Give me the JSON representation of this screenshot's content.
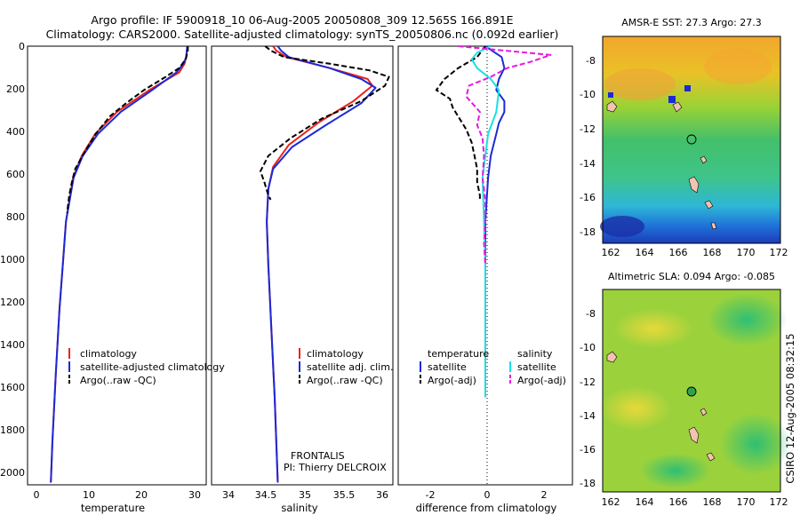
{
  "header": {
    "line1": "Argo profile: IF 5900918_10 06-Aug-2005 20050808_309 12.565S 166.891E",
    "line2": "Climatology: CARS2000. Satellite-adjusted climatology: synTS_20050806.nc (0.092d earlier)"
  },
  "credit": "CSIRO 12-Aug-2005 08:32:15",
  "colors": {
    "red": "#e8241b",
    "blue": "#1b2ad6",
    "black": "#000000",
    "cyan": "#19e0e6",
    "magenta": "#e619e0"
  },
  "y_axis": {
    "range": [
      0,
      2000
    ],
    "inverted": true,
    "ticks": [
      "0",
      "200",
      "400",
      "600",
      "800",
      "1000",
      "1200",
      "1400",
      "1600",
      "1800",
      "2000"
    ]
  },
  "panels": {
    "temperature": {
      "xlabel": "temperature",
      "xlim": [
        -2,
        31
      ],
      "xticks": [
        "0",
        "10",
        "20",
        "30"
      ],
      "legend": [
        "climatology",
        "satellite-adjusted climatology",
        "Argo(..raw -QC)"
      ]
    },
    "salinity": {
      "xlabel": "salinity",
      "xlim": [
        33.8,
        36.1
      ],
      "xticks": [
        "34",
        "34.5",
        "35",
        "35.5",
        "36"
      ],
      "legend": [
        "climatology",
        "satellite adj. clim.",
        "Argo(..raw -QC)"
      ],
      "annotation1": "FRONTALIS",
      "annotation2": "PI: Thierry DELCROIX"
    },
    "difference": {
      "xlabel": "difference from climatology",
      "xlim": [
        -3.2,
        3.2
      ],
      "xticks": [
        "-2",
        "0",
        "2"
      ],
      "legend_head": [
        "temperature",
        "salinity"
      ],
      "legend": [
        "satellite",
        "Argo(-adj)",
        "satellite",
        "Argo(-adj)"
      ]
    }
  },
  "maps": {
    "sst": {
      "title": "AMSR-E SST: 27.3 Argo: 27.3",
      "xticks": [
        "162",
        "164",
        "166",
        "168",
        "170",
        "172"
      ],
      "yticks": [
        "-8",
        "-10",
        "-12",
        "-14",
        "-16",
        "-18"
      ]
    },
    "sla": {
      "title": "Altimetric SLA: 0.094 Argo: -0.085",
      "xticks": [
        "162",
        "164",
        "166",
        "168",
        "170",
        "172"
      ],
      "yticks": [
        "-8",
        "-10",
        "-12",
        "-14",
        "-16",
        "-18"
      ]
    }
  },
  "chart_data": [
    {
      "type": "line",
      "xlabel": "temperature",
      "ylim": [
        2000,
        0
      ],
      "series": [
        {
          "name": "climatology",
          "color": "#e8241b",
          "depth": [
            0,
            50,
            80,
            120,
            200,
            300,
            400,
            500,
            600,
            800,
            1000,
            1200,
            1500,
            1800,
            1990
          ],
          "values": [
            27.5,
            27.3,
            27.0,
            26.0,
            20.5,
            14.5,
            10.5,
            8.0,
            6.4,
            5.1,
            4.5,
            3.9,
            3.2,
            2.6,
            2.3
          ]
        },
        {
          "name": "satellite-adjusted climatology",
          "color": "#1b2ad6",
          "depth": [
            0,
            50,
            80,
            120,
            200,
            300,
            400,
            500,
            600,
            800,
            1000,
            1200,
            1500,
            1800,
            1990
          ],
          "values": [
            27.5,
            27.3,
            26.8,
            25.5,
            21.0,
            15.2,
            11.0,
            8.2,
            6.5,
            5.1,
            4.5,
            3.9,
            3.2,
            2.6,
            2.3
          ]
        },
        {
          "name": "Argo(..raw -QC)",
          "color": "#000000",
          "depth": [
            0,
            20,
            60,
            100,
            140,
            200,
            260,
            320,
            400,
            480,
            560,
            620,
            680,
            760
          ],
          "values": [
            27.6,
            27.6,
            27.2,
            26.0,
            23.5,
            19.5,
            16.2,
            13.2,
            10.6,
            8.6,
            6.8,
            6.2,
            5.7,
            5.3
          ]
        }
      ]
    },
    {
      "type": "line",
      "xlabel": "salinity",
      "ylim": [
        2000,
        0
      ],
      "series": [
        {
          "name": "climatology",
          "color": "#e8241b",
          "depth": [
            0,
            20,
            50,
            100,
            150,
            180,
            250,
            350,
            450,
            550,
            650,
            800,
            1000,
            1300,
            1600,
            1990
          ],
          "values": [
            34.58,
            34.62,
            34.75,
            35.3,
            35.78,
            35.84,
            35.6,
            35.15,
            34.78,
            34.58,
            34.52,
            34.5,
            34.52,
            34.56,
            34.6,
            34.64
          ]
        },
        {
          "name": "satellite-adjusted climatology",
          "color": "#1b2ad6",
          "depth": [
            0,
            20,
            50,
            100,
            150,
            190,
            260,
            360,
            460,
            560,
            650,
            800,
            1000,
            1300,
            1600,
            1990
          ],
          "values": [
            34.64,
            34.68,
            34.78,
            35.3,
            35.7,
            35.88,
            35.7,
            35.25,
            34.82,
            34.58,
            34.52,
            34.5,
            34.52,
            34.56,
            34.6,
            34.64
          ]
        },
        {
          "name": "Argo(..raw -QC)",
          "color": "#000000",
          "depth": [
            0,
            20,
            50,
            80,
            110,
            140,
            180,
            250,
            330,
            420,
            500,
            570,
            620,
            680,
            700
          ],
          "values": [
            34.48,
            34.55,
            34.72,
            35.3,
            35.8,
            36.05,
            36.0,
            35.7,
            35.2,
            34.8,
            34.52,
            34.42,
            34.47,
            34.52,
            34.55
          ]
        }
      ]
    },
    {
      "type": "line",
      "xlabel": "difference from climatology",
      "ylim": [
        2000,
        0
      ],
      "series": [
        {
          "name": "temperature satellite",
          "color": "#1b2ad6",
          "depth": [
            0,
            50,
            100,
            150,
            200,
            250,
            300,
            350,
            400,
            500,
            600,
            800,
            1000,
            1300,
            1600
          ],
          "values": [
            0.0,
            0.6,
            0.7,
            0.5,
            0.4,
            0.7,
            0.7,
            0.5,
            0.4,
            0.2,
            0.1,
            0.0,
            0.0,
            0.0,
            0.0
          ]
        },
        {
          "name": "temperature Argo(-adj)",
          "color": "#000000",
          "depth": [
            0,
            50,
            100,
            150,
            200,
            240,
            280,
            320,
            380,
            440,
            500,
            560,
            620,
            680,
            700
          ],
          "values": [
            0.0,
            -0.3,
            -1.0,
            -1.5,
            -1.8,
            -1.3,
            -1.2,
            -1.0,
            -0.7,
            -0.5,
            -0.4,
            -0.3,
            -0.3,
            -0.2,
            -0.2
          ]
        },
        {
          "name": "salinity satellite",
          "color": "#19e0e6",
          "depth": [
            0,
            30,
            60,
            100,
            150,
            200,
            300,
            400,
            600,
            800,
            1000,
            1300,
            1600
          ],
          "values": [
            0.2,
            -0.3,
            -0.5,
            -0.3,
            0.2,
            0.5,
            0.4,
            0.1,
            -0.1,
            -0.05,
            0.0,
            0.0,
            0.0
          ]
        },
        {
          "name": "salinity Argo(-adj)",
          "color": "#e619e0",
          "depth": [
            0,
            40,
            70,
            100,
            140,
            180,
            230,
            300,
            360,
            420,
            500,
            600,
            700,
            800,
            900,
            1000
          ],
          "values": [
            -1.0,
            2.4,
            1.7,
            0.8,
            0.2,
            -0.6,
            -0.7,
            -0.2,
            -0.3,
            -0.1,
            -0.05,
            -0.1,
            0.0,
            0.0,
            -0.05,
            0.0
          ]
        }
      ]
    }
  ]
}
